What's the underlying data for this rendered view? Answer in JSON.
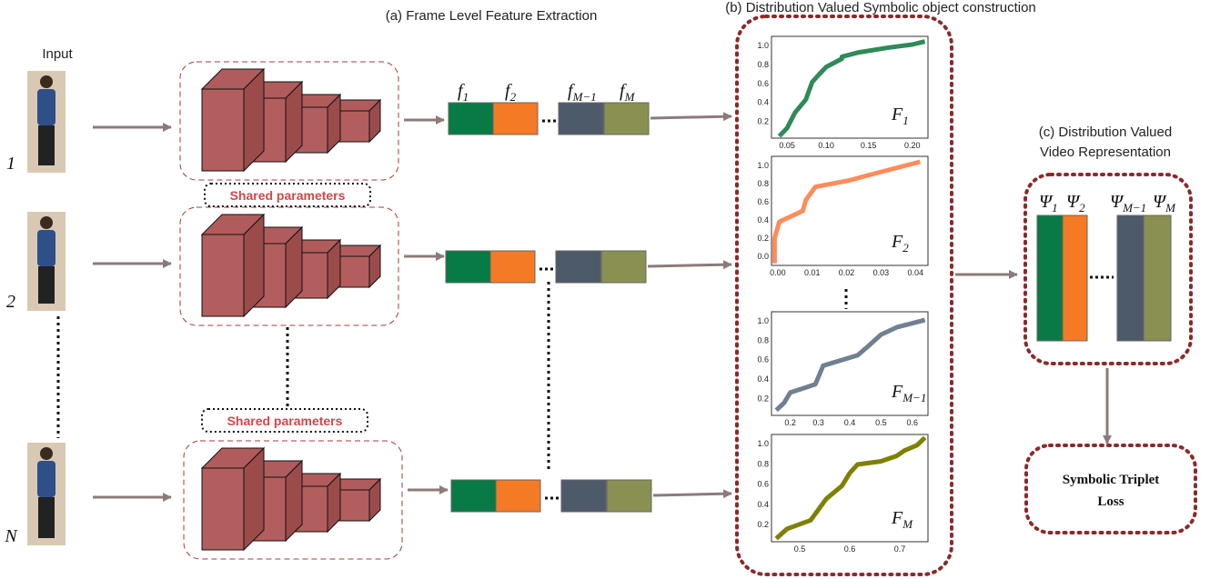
{
  "titles": {
    "a": "(a) Frame Level Feature Extraction",
    "b": "(b) Distribution Valued Symbolic object construction",
    "c": [
      "(c) Distribution Valued",
      "Video Representation"
    ]
  },
  "input": {
    "label": "Input",
    "frames": [
      "1",
      "2",
      "N"
    ]
  },
  "shared": [
    "Shared parameters",
    "Shared parameters"
  ],
  "features": [
    {
      "symbol": "f",
      "sub": "1"
    },
    {
      "symbol": "f",
      "sub": "2"
    },
    {
      "symbol": "f",
      "sub": "M−1"
    },
    {
      "symbol": "f",
      "sub": "M"
    }
  ],
  "charts": [
    {
      "label": {
        "symbol": "F",
        "sub": "1"
      },
      "yticks": [
        "1.0",
        "0.8",
        "0.6",
        "0.4",
        "0.2"
      ],
      "xticks": [
        "0.05",
        "0.10",
        "0.15",
        "0.20"
      ]
    },
    {
      "label": {
        "symbol": "F",
        "sub": "2"
      },
      "yticks": [
        "1.0",
        "0.8",
        "0.6",
        "0.4",
        "0.2",
        "0.0"
      ],
      "xticks": [
        "0.00",
        "0.01",
        "0.02",
        "0.03",
        "0.04"
      ]
    },
    {
      "label": {
        "symbol": "F",
        "sub": "M−1"
      },
      "yticks": [
        "1.0",
        "0.8",
        "0.6",
        "0.4",
        "0.2"
      ],
      "xticks": [
        "0.2",
        "0.3",
        "0.4",
        "0.5",
        "0.6"
      ]
    },
    {
      "label": {
        "symbol": "F",
        "sub": "M"
      },
      "yticks": [
        "1.0",
        "0.8",
        "0.6",
        "0.4",
        "0.2"
      ],
      "xticks": [
        "0.5",
        "0.6",
        "0.7"
      ]
    }
  ],
  "psi": [
    {
      "symbol": "Ψ",
      "sub": "1"
    },
    {
      "symbol": "Ψ",
      "sub": "2"
    },
    {
      "symbol": "Ψ",
      "sub": "M−1"
    },
    {
      "symbol": "Ψ",
      "sub": "M"
    }
  ],
  "loss": [
    "Symbolic Triplet",
    "Loss"
  ]
}
